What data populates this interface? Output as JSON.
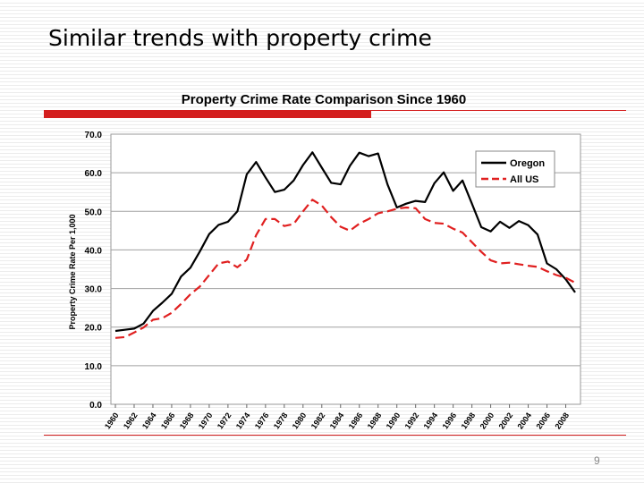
{
  "slide": {
    "title": "Similar trends with property crime",
    "page_number": "9"
  },
  "colors": {
    "accent_red": "#d41f1f",
    "oregon_line": "#000000",
    "all_us_line": "#e02020",
    "gridline": "#a0a0a0"
  },
  "chart_data": {
    "type": "line",
    "title": "Property Crime Rate Comparison Since 1960",
    "xlabel": "",
    "ylabel": "Property Crime Rate Per 1,000",
    "ylim": [
      0,
      70
    ],
    "y_ticks": [
      "0.0",
      "10.0",
      "20.0",
      "30.0",
      "40.0",
      "50.0",
      "60.0",
      "70.0"
    ],
    "grid": true,
    "legend_position": "top-right",
    "x_tick_labels": [
      "1960",
      "1962",
      "1964",
      "1966",
      "1968",
      "1970",
      "1972",
      "1974",
      "1976",
      "1978",
      "1980",
      "1982",
      "1984",
      "1986",
      "1988",
      "1990",
      "1992",
      "1994",
      "1996",
      "1998",
      "2000",
      "2002",
      "2004",
      "2006",
      "2008"
    ],
    "x": [
      1960,
      1961,
      1962,
      1963,
      1964,
      1965,
      1966,
      1967,
      1968,
      1969,
      1970,
      1971,
      1972,
      1973,
      1974,
      1975,
      1976,
      1977,
      1978,
      1979,
      1980,
      1981,
      1982,
      1983,
      1984,
      1985,
      1986,
      1987,
      1988,
      1989,
      1990,
      1991,
      1992,
      1993,
      1994,
      1995,
      1996,
      1997,
      1998,
      1999,
      2000,
      2001,
      2002,
      2003,
      2004,
      2005,
      2006,
      2007,
      2008,
      2009
    ],
    "series": [
      {
        "name": "Oregon",
        "style": "solid",
        "color": "#000000",
        "values": [
          19.0,
          19.3,
          19.6,
          20.9,
          24.2,
          26.3,
          28.6,
          33.1,
          35.4,
          39.6,
          44.1,
          46.5,
          47.3,
          50.0,
          59.6,
          62.8,
          58.8,
          55.0,
          55.6,
          58.0,
          62.0,
          65.3,
          61.3,
          57.4,
          57.0,
          61.8,
          65.2,
          64.3,
          65.0,
          57.0,
          51.0,
          52.0,
          52.7,
          52.4,
          57.3,
          60.1,
          55.3,
          58.0,
          52.0,
          45.9,
          44.8,
          47.3,
          45.7,
          47.5,
          46.4,
          44.0,
          36.5,
          35.0,
          32.4,
          29.0
        ]
      },
      {
        "name": "All US",
        "style": "dashed",
        "color": "#e02020",
        "values": [
          17.2,
          17.4,
          18.6,
          19.9,
          21.9,
          22.3,
          23.7,
          26.0,
          28.5,
          30.5,
          33.5,
          36.5,
          37.0,
          35.5,
          37.5,
          43.8,
          48.0,
          48.0,
          46.2,
          46.7,
          50.0,
          53.0,
          51.5,
          48.5,
          46.0,
          45.0,
          46.8,
          48.0,
          49.5,
          50.0,
          50.7,
          51.0,
          50.8,
          48.0,
          47.0,
          46.8,
          45.5,
          44.5,
          42.0,
          39.5,
          37.3,
          36.5,
          36.7,
          36.3,
          35.9,
          35.6,
          34.5,
          33.5,
          32.8,
          31.5
        ]
      }
    ]
  }
}
